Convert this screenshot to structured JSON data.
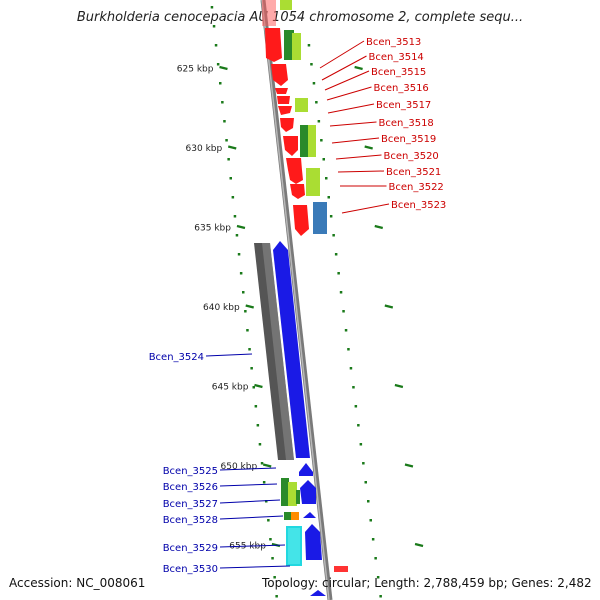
{
  "title": "Burkholderia cenocepacia AU 1054 chromosome 2, complete sequ...",
  "footer": {
    "accession": "Accession: NC_008061",
    "topology": "Topology: circular; Length: 2,788,459 bp; Genes: 2,482"
  },
  "colors": {
    "forward_label": "#cc0000",
    "reverse_label": "#0000aa",
    "backbone": "#8a8a8a",
    "tick": "#1a7a1a"
  },
  "ticks": [
    {
      "kbp": 625,
      "label": "625 kbp"
    },
    {
      "kbp": 630,
      "label": "630 kbp"
    },
    {
      "kbp": 635,
      "label": "635 kbp"
    },
    {
      "kbp": 640,
      "label": "640 kbp"
    },
    {
      "kbp": 645,
      "label": "645 kbp"
    },
    {
      "kbp": 650,
      "label": "650 kbp"
    },
    {
      "kbp": 655,
      "label": "655 kbp"
    }
  ],
  "labels_forward": [
    "Bcen_3513",
    "Bcen_3514",
    "Bcen_3515",
    "Bcen_3516",
    "Bcen_3517",
    "Bcen_3518",
    "Bcen_3519",
    "Bcen_3520",
    "Bcen_3521",
    "Bcen_3522",
    "Bcen_3523"
  ],
  "labels_reverse": [
    "Bcen_3524",
    "Bcen_3525",
    "Bcen_3526",
    "Bcen_3527",
    "Bcen_3528",
    "Bcen_3529",
    "Bcen_3530"
  ]
}
